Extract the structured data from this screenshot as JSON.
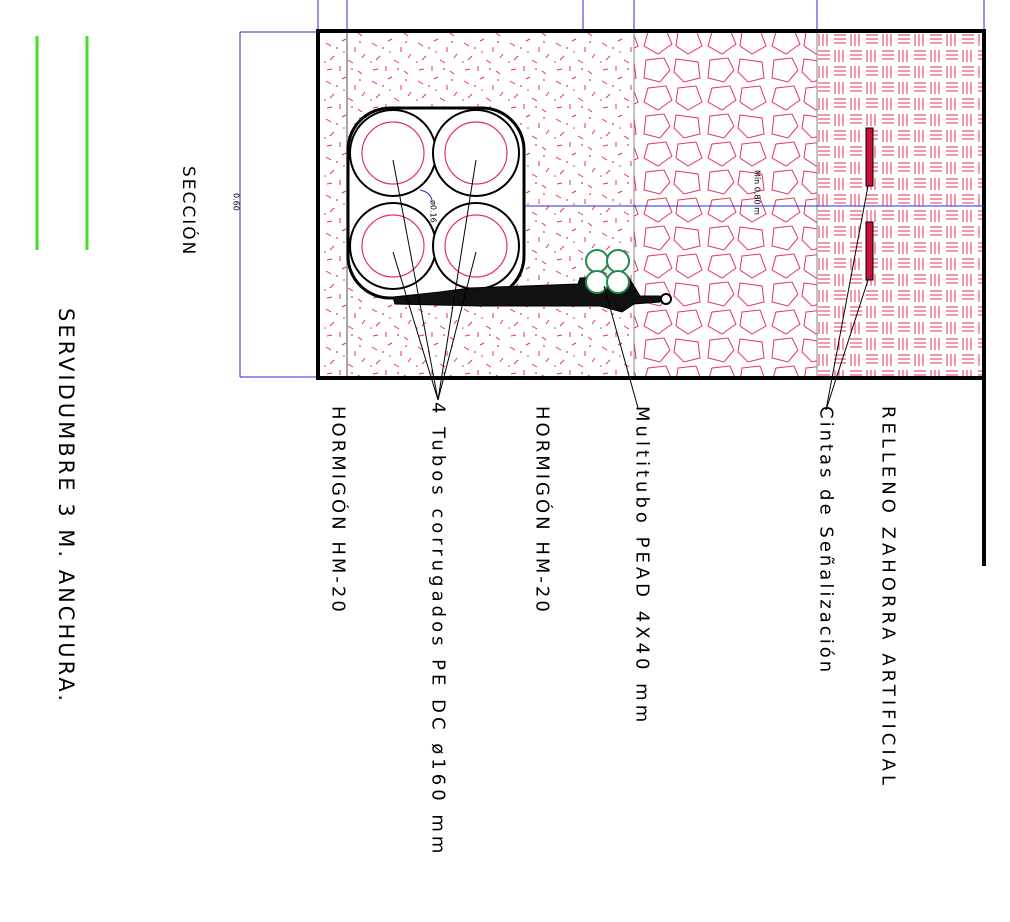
{
  "title": "SERVIDUMBRE 3 M. ANCHURA.",
  "section_label": "SECCIÓN",
  "dimensions": {
    "height": "0.60",
    "tube_diameter": "ø0.16",
    "min_depth": "Mín 0,80 m"
  },
  "labels": {
    "concrete_lower": "HORMIGÓN HM-20",
    "tubes": "4 Tubos corrugados PE DC ø160 mm",
    "concrete_upper": "HORMIGÓN HM-20",
    "multitube": "Multitubo PEAD 4X40 mm",
    "tapes": "Cintas de Señalización",
    "fill": "RELLENO ZAHORRA ARTIFICIAL"
  },
  "colors": {
    "outline": "#000000",
    "hatch": "#e8305a",
    "dimension": "#2a2ad0",
    "multitube": "#1f8a4c",
    "tape": "#c8103a",
    "green_line": "#44dd22"
  }
}
